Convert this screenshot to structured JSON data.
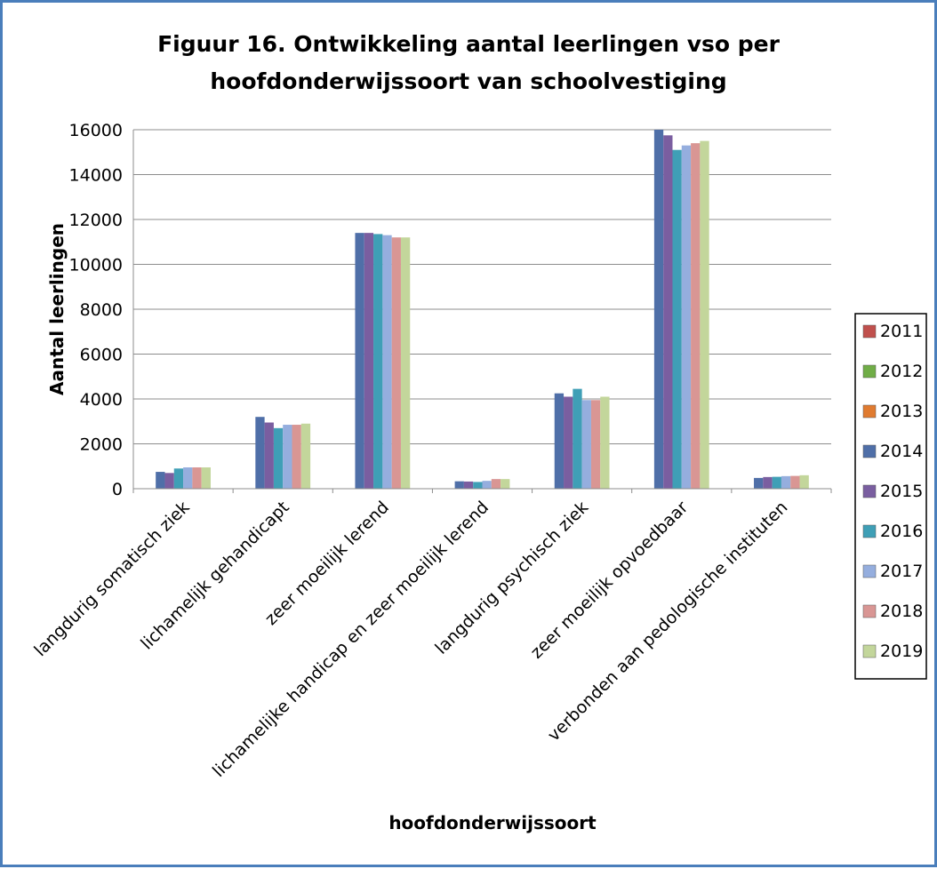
{
  "chart_data": {
    "type": "bar",
    "title_lines": [
      "Figuur 16. Ontwikkeling aantal leerlingen vso per",
      "hoofdonderwijssoort van schoolvestiging"
    ],
    "xlabel": "hoofdonderwijssoort",
    "ylabel": "Aantal leerlingen",
    "ylim": [
      0,
      16000
    ],
    "yticks": [
      0,
      2000,
      4000,
      6000,
      8000,
      10000,
      12000,
      14000,
      16000
    ],
    "grid": true,
    "legend_position": "right",
    "categories": [
      "langdurig somatisch ziek",
      "lichamelijk gehandicapt",
      "zeer moeilijk lerend",
      "lichamelijke handicap en zeer moeilijk lerend",
      "langdurig psychisch ziek",
      "zeer moeilijk opvoedbaar",
      "verbonden aan pedologische instituten"
    ],
    "series": [
      {
        "name": "2011",
        "color": "#c0504d",
        "values": [
          null,
          null,
          null,
          null,
          null,
          null,
          null
        ]
      },
      {
        "name": "2012",
        "color": "#70ad47",
        "values": [
          null,
          null,
          null,
          null,
          null,
          null,
          null
        ]
      },
      {
        "name": "2013",
        "color": "#e07b30",
        "values": [
          null,
          null,
          null,
          null,
          null,
          null,
          null
        ]
      },
      {
        "name": "2014",
        "color": "#4f6fa8",
        "values": [
          750,
          3200,
          11400,
          330,
          4250,
          16000,
          480
        ]
      },
      {
        "name": "2015",
        "color": "#7a5ea0",
        "values": [
          700,
          2950,
          11400,
          320,
          4100,
          15750,
          520
        ]
      },
      {
        "name": "2016",
        "color": "#3f9fb6",
        "values": [
          900,
          2700,
          11350,
          300,
          4450,
          15100,
          530
        ]
      },
      {
        "name": "2017",
        "color": "#95aede",
        "values": [
          950,
          2850,
          11300,
          350,
          3950,
          15300,
          560
        ]
      },
      {
        "name": "2018",
        "color": "#d99694",
        "values": [
          950,
          2850,
          11200,
          430,
          3950,
          15400,
          570
        ]
      },
      {
        "name": "2019",
        "color": "#c3d69b",
        "values": [
          950,
          2900,
          11200,
          430,
          4100,
          15500,
          600
        ]
      }
    ]
  }
}
